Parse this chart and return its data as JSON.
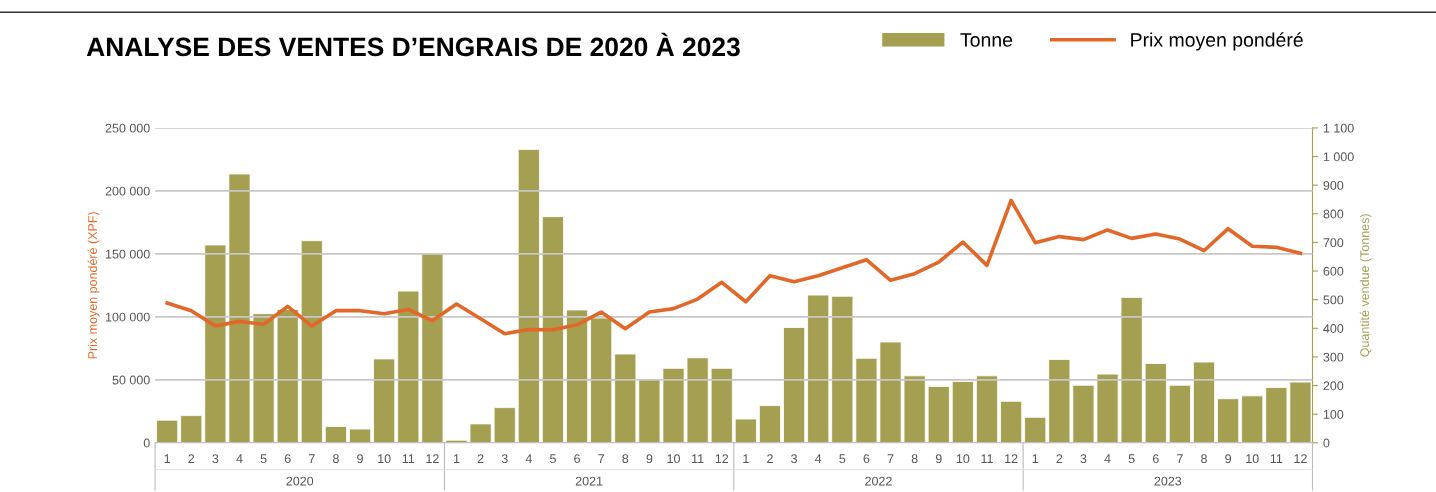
{
  "chart_data": {
    "type": "bar",
    "title": "ANALYSE DES VENTES D’ENGRAIS DE 2020 À 2023",
    "categories": [
      "1",
      "2",
      "3",
      "4",
      "5",
      "6",
      "7",
      "8",
      "9",
      "10",
      "11",
      "12",
      "1",
      "2",
      "3",
      "4",
      "5",
      "6",
      "7",
      "8",
      "9",
      "10",
      "11",
      "12",
      "1",
      "2",
      "3",
      "4",
      "5",
      "6",
      "7",
      "8",
      "9",
      "10",
      "11",
      "12",
      "1",
      "2",
      "3",
      "4",
      "5",
      "6",
      "7",
      "8",
      "9",
      "10",
      "11",
      "12"
    ],
    "annotations": [
      "2020",
      "2021",
      "2022",
      "2023"
    ],
    "series": [
      {
        "name": "Tonne",
        "axis": "y2",
        "color": "#a59f52",
        "values": [
          79,
          95,
          691,
          939,
          451,
          466,
          706,
          57,
          48,
          293,
          530,
          660,
          9,
          66,
          123,
          1025,
          790,
          464,
          436,
          310,
          222,
          260,
          297,
          260,
          83,
          130,
          403,
          516,
          512,
          295,
          352,
          234,
          197,
          214,
          234,
          145,
          89,
          291,
          201,
          240,
          508,
          277,
          201,
          282,
          154,
          164,
          193,
          212
        ]
      },
      {
        "name": "Prix moyen pondéré",
        "type": "line",
        "axis": "y",
        "color": "#e2682a",
        "values": [
          111000,
          104900,
          92700,
          96400,
          94000,
          108300,
          92700,
          104900,
          104900,
          102500,
          105900,
          96900,
          110200,
          98500,
          86600,
          90000,
          89800,
          93700,
          103800,
          90600,
          103800,
          106500,
          114100,
          127400,
          112000,
          132700,
          127900,
          132700,
          139000,
          145400,
          129000,
          134300,
          143500,
          159400,
          140900,
          192500,
          158900,
          163700,
          161300,
          169000,
          162300,
          165800,
          161800,
          152500,
          170000,
          156000,
          155200,
          150400
        ]
      }
    ],
    "ylabel": "Prix moyen pondéré (XPF)",
    "y2label": "Quantité vendue (Tonnes)",
    "ylim": [
      0,
      250000
    ],
    "yticks": [
      0,
      {
        "value": 50000,
        "label": "50 000"
      },
      {
        "value": 100000,
        "label": "100 000"
      },
      {
        "value": 150000,
        "label": "150 000"
      },
      {
        "value": 200000,
        "label": "200 000"
      },
      {
        "value": 250000,
        "label": "250 000"
      }
    ],
    "y2lim": [
      0,
      1100
    ],
    "y2ticks": [
      0,
      100,
      200,
      300,
      400,
      500,
      600,
      700,
      800,
      900,
      {
        "value": 1000,
        "label": "1 000"
      },
      {
        "value": 1100,
        "label": "1 100"
      }
    ],
    "grid": "y",
    "legend": "top right"
  }
}
